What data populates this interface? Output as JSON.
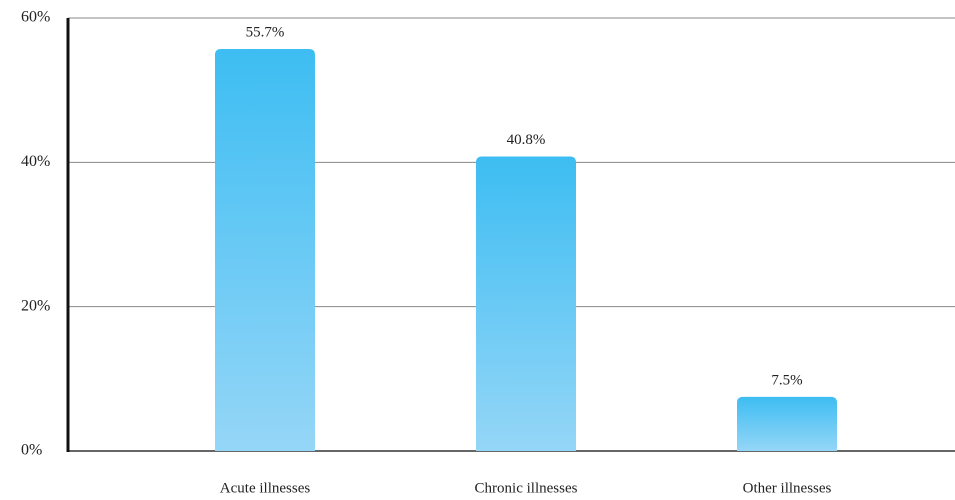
{
  "chart_data": {
    "type": "bar",
    "categories": [
      "Acute illnesses",
      "Chronic illnesses",
      "Other illnesses"
    ],
    "values": [
      55.7,
      40.8,
      7.5
    ],
    "value_labels": [
      "55.7%",
      "40.8%",
      "7.5%"
    ],
    "gradient": [
      "#3dbdf2",
      "#95d6f7"
    ],
    "ylim": [
      0,
      60
    ],
    "yticks": [
      {
        "value": 0,
        "label": "0%"
      },
      {
        "value": 20,
        "label": "20%"
      },
      {
        "value": 40,
        "label": "40%"
      },
      {
        "value": 60,
        "label": "60%"
      }
    ],
    "grid": true
  }
}
